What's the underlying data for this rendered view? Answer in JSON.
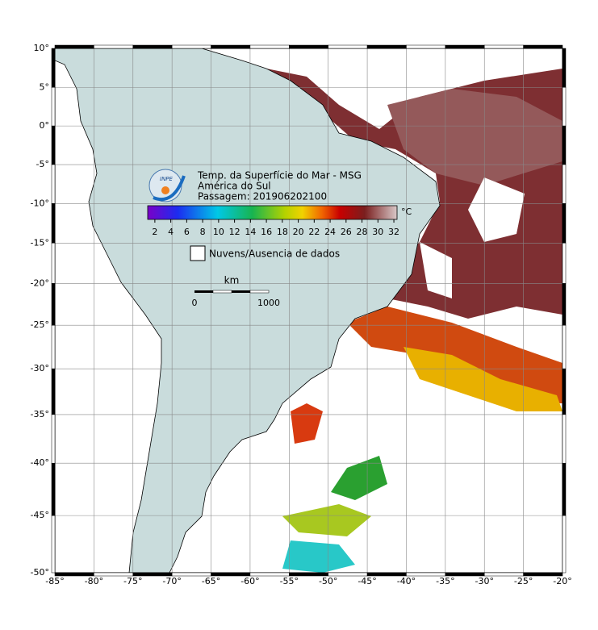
{
  "map": {
    "type": "map",
    "projection": "mercator",
    "title_lines": [
      "Temp. da Superfície do Mar - MSG",
      "América do Sul",
      "Passagem: 201906202100"
    ],
    "xlim": [
      -85,
      -20
    ],
    "ylim": [
      -50,
      10
    ],
    "grid": true,
    "xticks": [
      {
        "value": -85,
        "label": "-85°"
      },
      {
        "value": -80,
        "label": "-80°"
      },
      {
        "value": -75,
        "label": "-75°"
      },
      {
        "value": -70,
        "label": "-70°"
      },
      {
        "value": -65,
        "label": "-65°"
      },
      {
        "value": -60,
        "label": "-60°"
      },
      {
        "value": -55,
        "label": "-55°"
      },
      {
        "value": -50,
        "label": "-50°"
      },
      {
        "value": -45,
        "label": "-45°"
      },
      {
        "value": -40,
        "label": "-40°"
      },
      {
        "value": -35,
        "label": "-35°"
      },
      {
        "value": -30,
        "label": "-30°"
      },
      {
        "value": -25,
        "label": "-25°"
      },
      {
        "value": -20,
        "label": "-20°"
      }
    ],
    "yticks": [
      {
        "value": 10,
        "label": "10°"
      },
      {
        "value": 5,
        "label": "5°"
      },
      {
        "value": 0,
        "label": "0°"
      },
      {
        "value": -5,
        "label": "-5°"
      },
      {
        "value": -10,
        "label": "-10°"
      },
      {
        "value": -15,
        "label": "-15°"
      },
      {
        "value": -20,
        "label": "-20°"
      },
      {
        "value": -25,
        "label": "-25°"
      },
      {
        "value": -30,
        "label": "-30°"
      },
      {
        "value": -35,
        "label": "-35°"
      },
      {
        "value": -40,
        "label": "-40°"
      },
      {
        "value": -45,
        "label": "-45°"
      },
      {
        "value": -50,
        "label": "-50°"
      }
    ]
  },
  "colorbar": {
    "unit": "°C",
    "clim": [
      1.1,
      32.4
    ],
    "ticks": [
      2,
      4,
      6,
      8,
      10,
      12,
      14,
      16,
      18,
      20,
      22,
      24,
      26,
      28,
      30,
      32
    ]
  },
  "legend": {
    "label": "Nuvens/Ausencia de dados"
  },
  "scale_bar": {
    "unit": "km",
    "labels": [
      0,
      1000
    ]
  },
  "logo": "INPE"
}
